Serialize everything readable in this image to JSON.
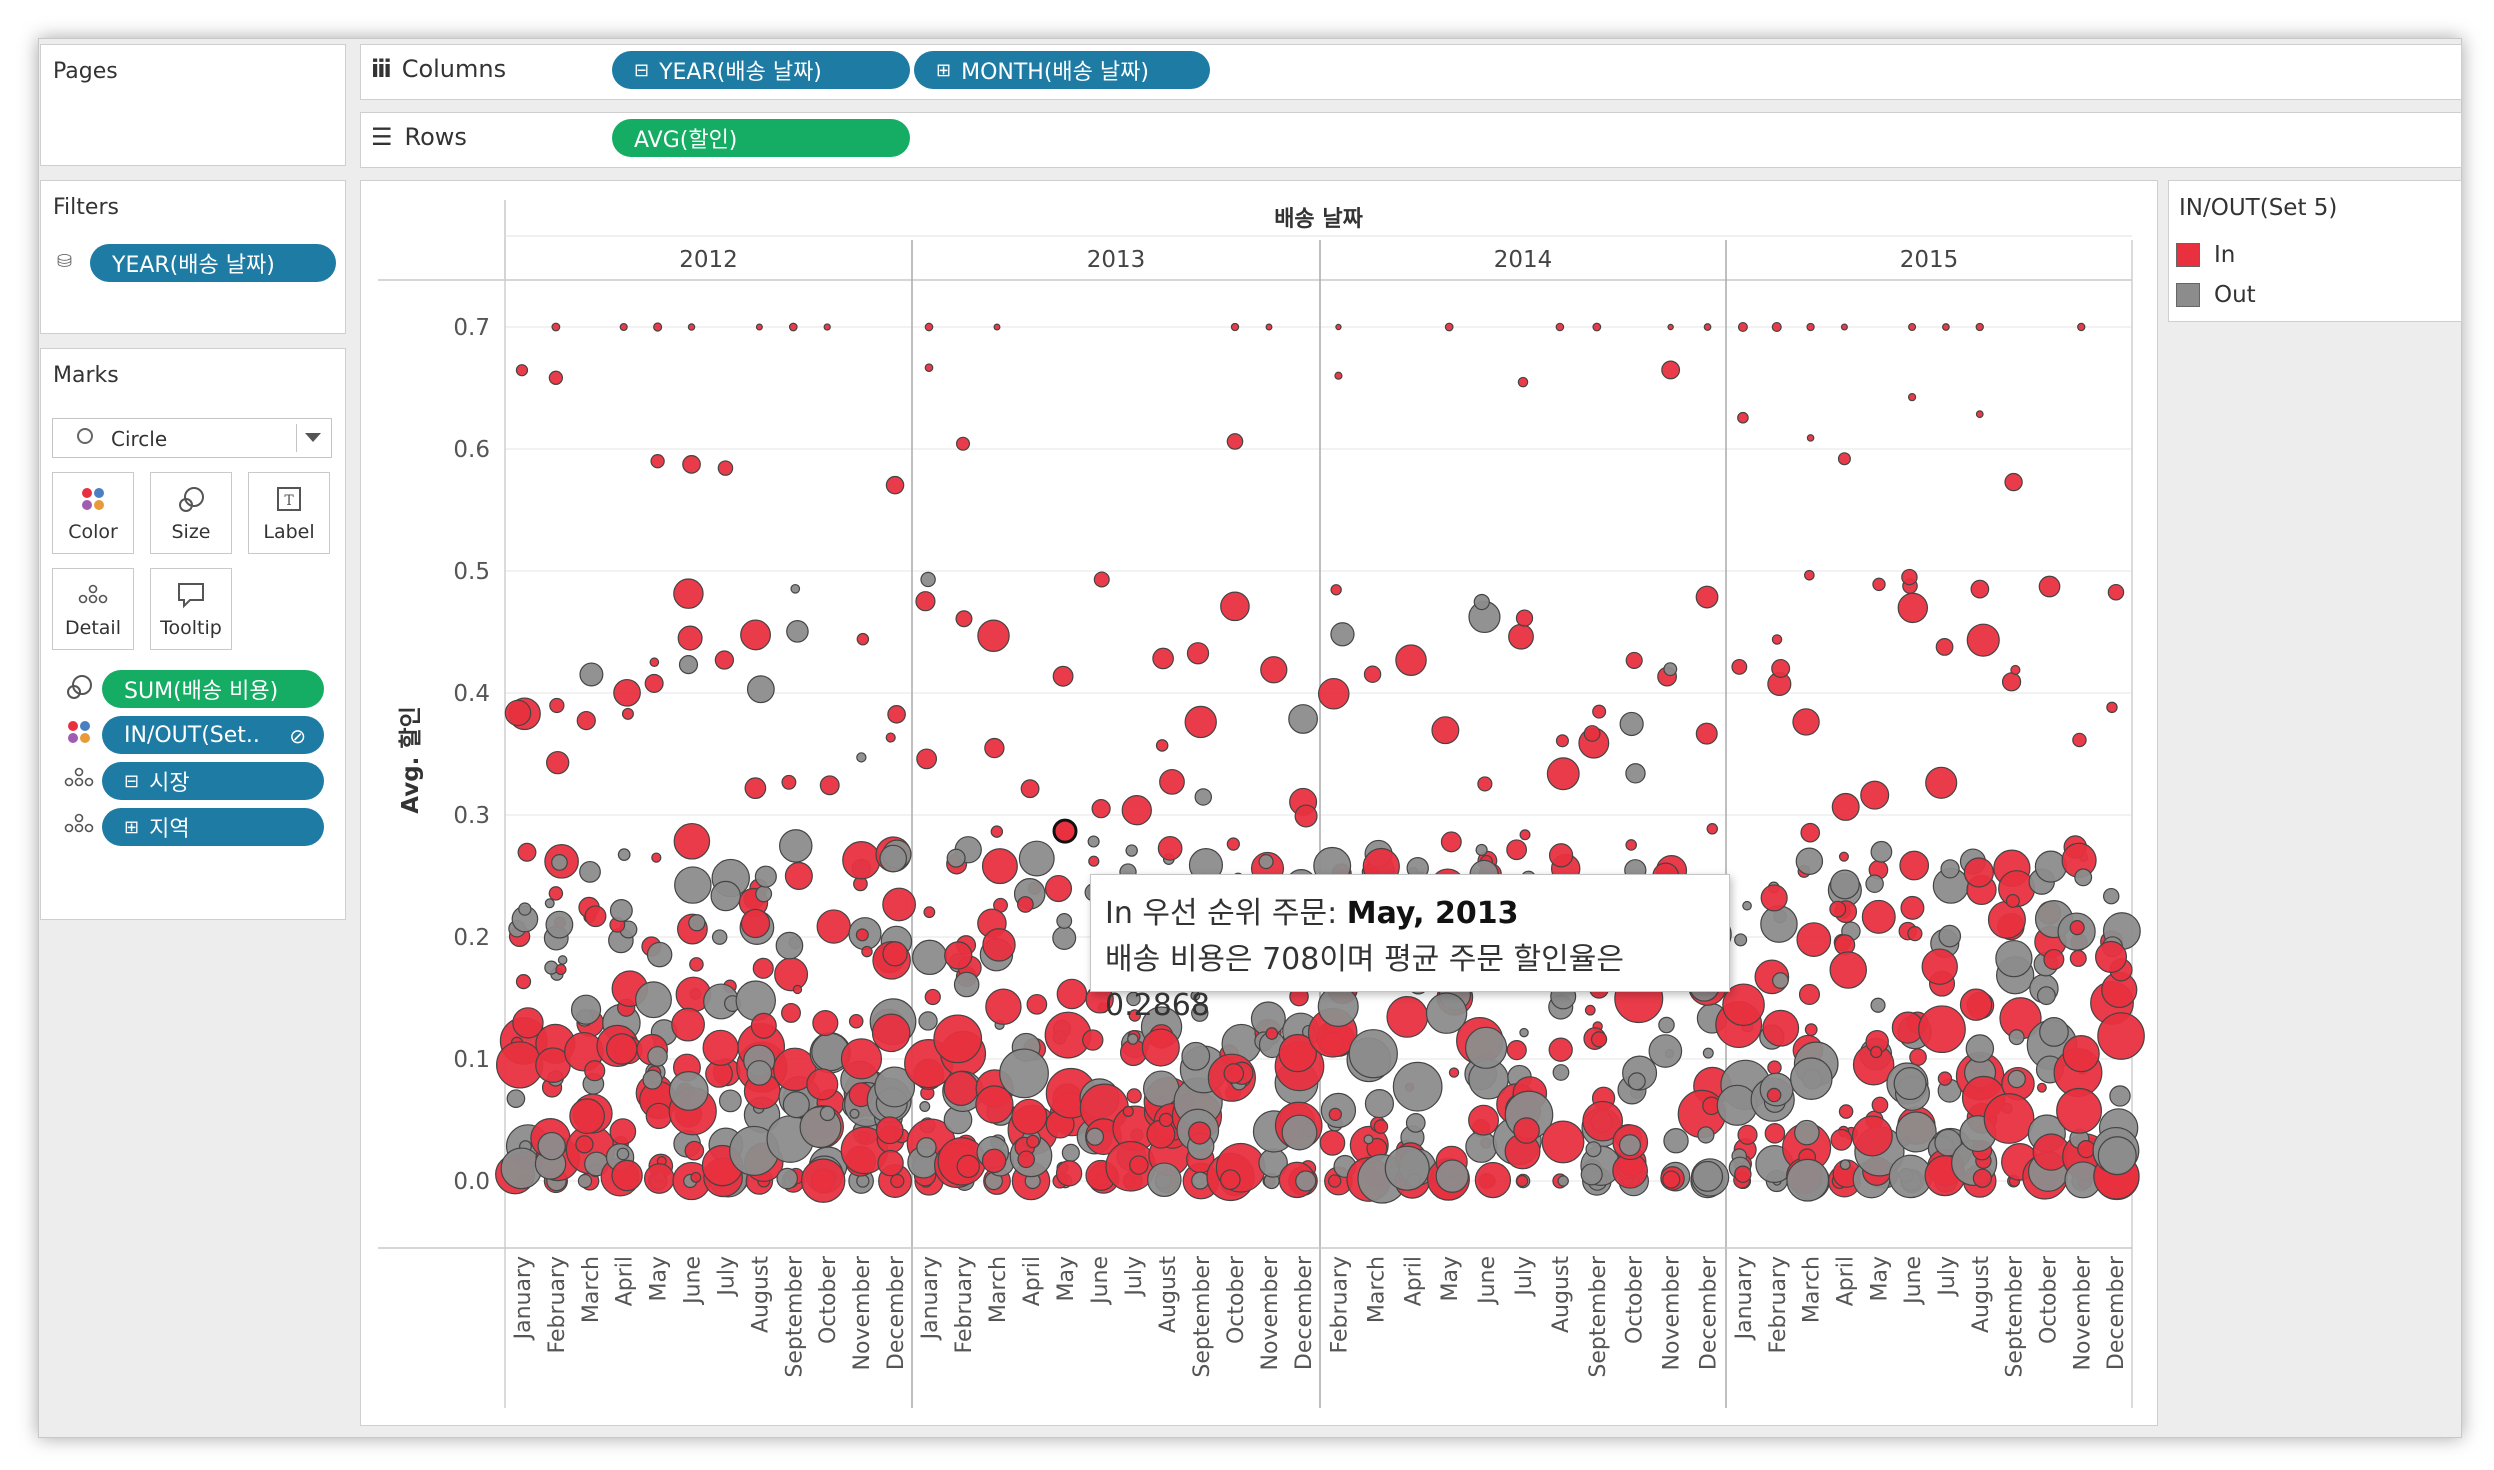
{
  "pages": {
    "title": "Pages"
  },
  "columns": {
    "label": "Columns",
    "pills": [
      {
        "prefix": "⊟",
        "text": "YEAR(배송 날짜)"
      },
      {
        "prefix": "⊞",
        "text": "MONTH(배송 날짜)"
      }
    ]
  },
  "rows": {
    "label": "Rows",
    "pill": "AVG(할인)"
  },
  "filters": {
    "title": "Filters",
    "pill": "YEAR(배송 날짜)"
  },
  "marks": {
    "title": "Marks",
    "type": "Circle",
    "buttons": [
      "Color",
      "Size",
      "Label",
      "Detail",
      "Tooltip"
    ],
    "fields": [
      {
        "text": "SUM(배송 비용)",
        "color": "green",
        "icon": "size-icon"
      },
      {
        "text": "IN/OUT(Set..",
        "color": "blue",
        "icon": "color-icon"
      },
      {
        "prefix": "⊟",
        "text": "시장",
        "color": "blue",
        "icon": "detail-icon"
      },
      {
        "prefix": "⊞",
        "text": "지역",
        "color": "blue",
        "icon": "detail-icon"
      }
    ]
  },
  "legend": {
    "title": "IN/OUT(Set 5)",
    "items": [
      {
        "label": "In",
        "color": "#e8303f"
      },
      {
        "label": "Out",
        "color": "#8c8c8c"
      }
    ]
  },
  "tooltip": {
    "line1_prefix": "In 우선 순위 주문: ",
    "line1_bold": "May, 2013",
    "line2": "배송 비용은 708이며 평균 주문 할인율은 0.2868"
  },
  "chart_data": {
    "type": "scatter",
    "header": "배송 날짜",
    "ylabel": "Avg. 할인",
    "ylim": [
      -0.02,
      0.74
    ],
    "yticks": [
      0.0,
      0.1,
      0.2,
      0.3,
      0.4,
      0.5,
      0.6,
      0.7
    ],
    "years": [
      "2012",
      "2013",
      "2014",
      "2015"
    ],
    "months": [
      [
        "January",
        "February",
        "March",
        "April",
        "May",
        "June",
        "July",
        "August",
        "September",
        "October",
        "November",
        "December"
      ],
      [
        "January",
        "February",
        "March",
        "April",
        "May",
        "June",
        "July",
        "August",
        "September",
        "October",
        "November",
        "December"
      ],
      [
        "February",
        "March",
        "April",
        "May",
        "June",
        "July",
        "August",
        "September",
        "October",
        "November",
        "December"
      ],
      [
        "January",
        "February",
        "March",
        "April",
        "May",
        "June",
        "July",
        "August",
        "September",
        "October",
        "November",
        "December"
      ]
    ],
    "colors": {
      "In": "#e8303f",
      "Out": "#8c8c8c"
    },
    "highlight": {
      "year": "2013",
      "month": "May",
      "set": "In",
      "avg_discount": 0.2868,
      "shipping_cost": 708
    }
  }
}
